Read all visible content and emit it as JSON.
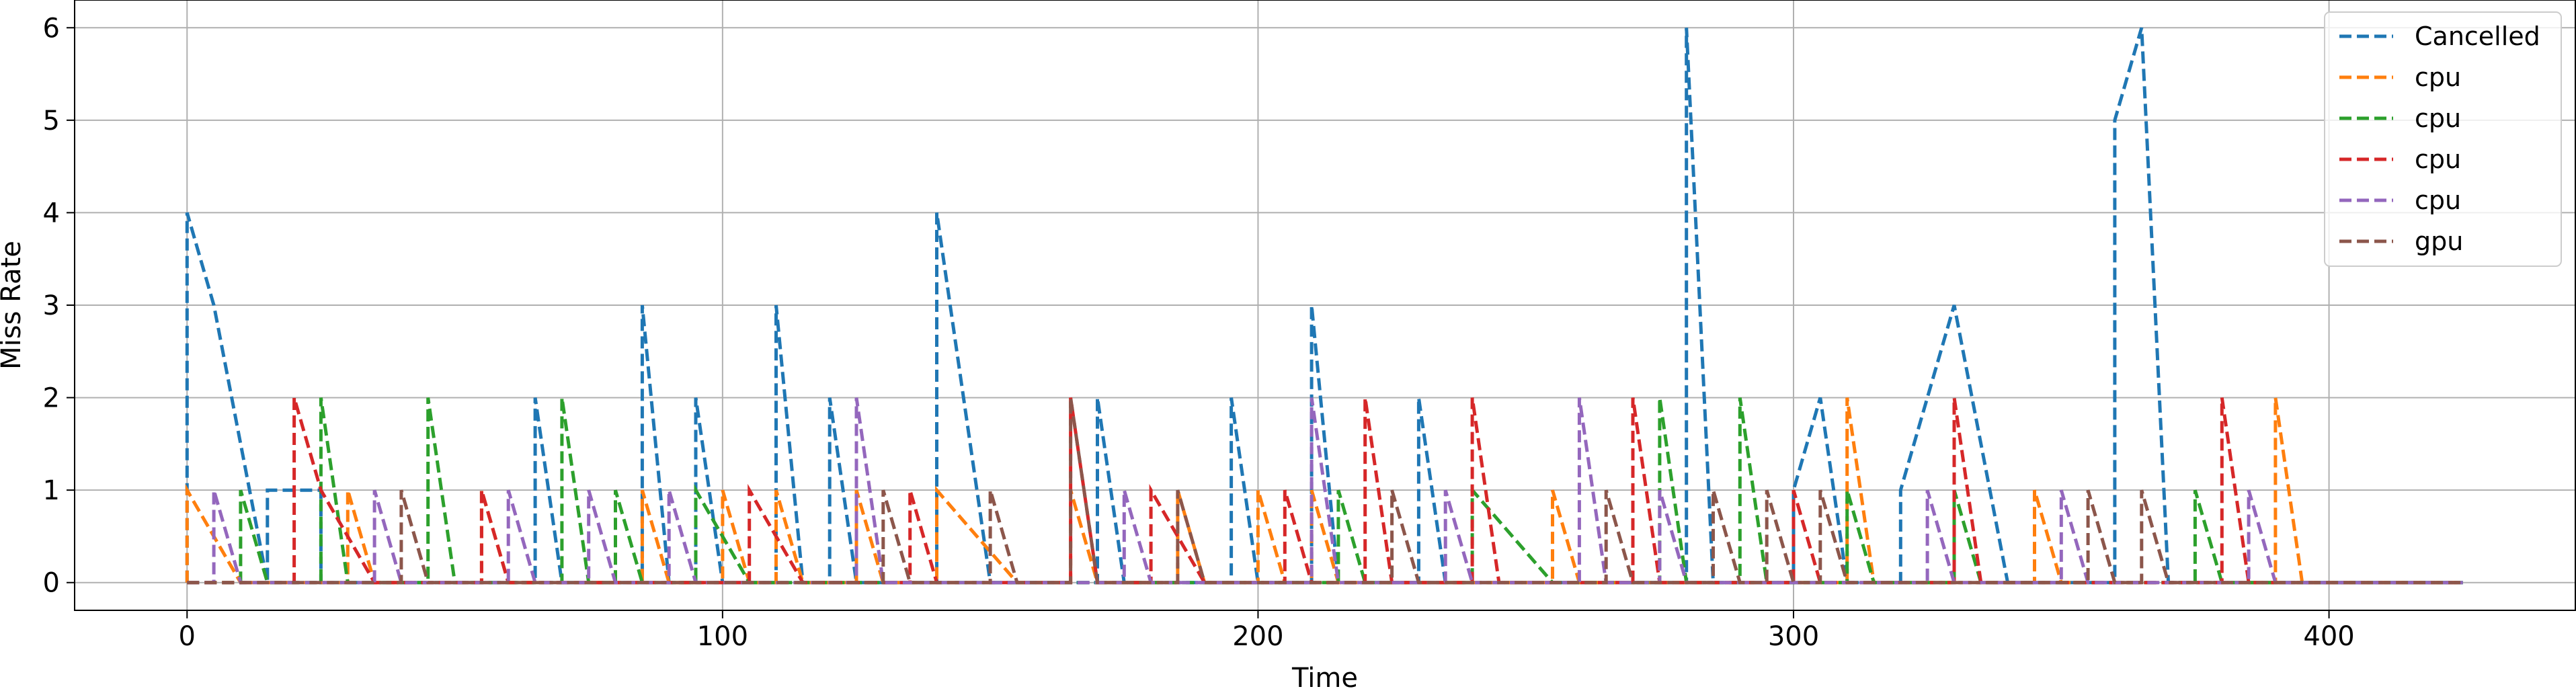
{
  "chart_data": {
    "type": "line",
    "step": "post",
    "line_style": "dashed",
    "xlabel": "Time",
    "ylabel": "Miss Rate",
    "xlim": [
      -21,
      446
    ],
    "ylim": [
      -0.3,
      6.3
    ],
    "xticks": [
      0,
      100,
      200,
      300,
      400
    ],
    "yticks": [
      0,
      1,
      2,
      3,
      4,
      5,
      6
    ],
    "grid": true,
    "legend_position": "top-right",
    "series": [
      {
        "name": "Cancelled",
        "color": "#1f77b4",
        "points": [
          [
            0,
            0
          ],
          [
            0,
            4
          ],
          [
            5,
            3
          ],
          [
            15,
            0
          ],
          [
            15,
            1
          ],
          [
            25,
            1
          ],
          [
            25,
            0
          ],
          [
            65,
            0
          ],
          [
            65,
            2
          ],
          [
            70,
            0
          ],
          [
            85,
            0
          ],
          [
            85,
            3
          ],
          [
            90,
            0
          ],
          [
            95,
            0
          ],
          [
            95,
            2
          ],
          [
            100,
            0
          ],
          [
            110,
            0
          ],
          [
            110,
            3
          ],
          [
            115,
            0
          ],
          [
            120,
            0
          ],
          [
            120,
            2
          ],
          [
            125,
            0
          ],
          [
            140,
            0
          ],
          [
            140,
            4
          ],
          [
            150,
            0
          ],
          [
            170,
            0
          ],
          [
            170,
            2
          ],
          [
            175,
            0
          ],
          [
            195,
            0
          ],
          [
            195,
            2
          ],
          [
            200,
            0
          ],
          [
            210,
            0
          ],
          [
            210,
            3
          ],
          [
            215,
            0
          ],
          [
            230,
            0
          ],
          [
            230,
            2
          ],
          [
            235,
            0
          ],
          [
            280,
            0
          ],
          [
            280,
            6
          ],
          [
            285,
            0
          ],
          [
            300,
            0
          ],
          [
            300,
            1
          ],
          [
            305,
            2
          ],
          [
            310,
            0
          ],
          [
            320,
            0
          ],
          [
            320,
            1
          ],
          [
            325,
            2
          ],
          [
            330,
            3
          ],
          [
            340,
            0
          ],
          [
            360,
            0
          ],
          [
            360,
            5
          ],
          [
            365,
            6
          ],
          [
            370,
            0
          ],
          [
            425,
            0
          ]
        ]
      },
      {
        "name": "cpu",
        "color": "#ff7f0e",
        "points": [
          [
            0,
            0
          ],
          [
            0,
            1
          ],
          [
            10,
            0
          ],
          [
            30,
            0
          ],
          [
            30,
            1
          ],
          [
            35,
            0
          ],
          [
            55,
            0
          ],
          [
            55,
            1
          ],
          [
            60,
            0
          ],
          [
            85,
            0
          ],
          [
            85,
            1
          ],
          [
            90,
            0
          ],
          [
            100,
            0
          ],
          [
            100,
            1
          ],
          [
            105,
            0
          ],
          [
            110,
            0
          ],
          [
            110,
            1
          ],
          [
            115,
            0
          ],
          [
            125,
            0
          ],
          [
            125,
            1
          ],
          [
            130,
            0
          ],
          [
            140,
            0
          ],
          [
            140,
            1
          ],
          [
            155,
            0
          ],
          [
            165,
            0
          ],
          [
            165,
            1
          ],
          [
            170,
            0
          ],
          [
            185,
            0
          ],
          [
            185,
            1
          ],
          [
            190,
            0
          ],
          [
            200,
            0
          ],
          [
            200,
            1
          ],
          [
            205,
            0
          ],
          [
            210,
            0
          ],
          [
            210,
            1
          ],
          [
            215,
            0
          ],
          [
            255,
            0
          ],
          [
            255,
            1
          ],
          [
            260,
            0
          ],
          [
            310,
            0
          ],
          [
            310,
            2
          ],
          [
            315,
            0
          ],
          [
            345,
            0
          ],
          [
            345,
            1
          ],
          [
            350,
            0
          ],
          [
            390,
            0
          ],
          [
            390,
            2
          ],
          [
            395,
            0
          ],
          [
            425,
            0
          ]
        ]
      },
      {
        "name": "cpu",
        "color": "#2ca02c",
        "points": [
          [
            0,
            0
          ],
          [
            10,
            0
          ],
          [
            10,
            1
          ],
          [
            15,
            0
          ],
          [
            25,
            0
          ],
          [
            25,
            2
          ],
          [
            30,
            0
          ],
          [
            45,
            0
          ],
          [
            45,
            2
          ],
          [
            50,
            0
          ],
          [
            70,
            0
          ],
          [
            70,
            2
          ],
          [
            75,
            0
          ],
          [
            80,
            0
          ],
          [
            80,
            1
          ],
          [
            85,
            0
          ],
          [
            95,
            0
          ],
          [
            95,
            1
          ],
          [
            105,
            0
          ],
          [
            215,
            0
          ],
          [
            215,
            1
          ],
          [
            220,
            0
          ],
          [
            240,
            0
          ],
          [
            240,
            1
          ],
          [
            255,
            0
          ],
          [
            275,
            0
          ],
          [
            275,
            2
          ],
          [
            280,
            0
          ],
          [
            290,
            0
          ],
          [
            290,
            2
          ],
          [
            295,
            0
          ],
          [
            310,
            0
          ],
          [
            310,
            1
          ],
          [
            315,
            0
          ],
          [
            330,
            0
          ],
          [
            330,
            1
          ],
          [
            335,
            0
          ],
          [
            375,
            0
          ],
          [
            375,
            1
          ],
          [
            380,
            0
          ],
          [
            425,
            0
          ]
        ]
      },
      {
        "name": "cpu",
        "color": "#d62728",
        "points": [
          [
            0,
            0
          ],
          [
            20,
            0
          ],
          [
            20,
            2
          ],
          [
            25,
            1
          ],
          [
            35,
            0
          ],
          [
            55,
            0
          ],
          [
            55,
            1
          ],
          [
            60,
            0
          ],
          [
            105,
            0
          ],
          [
            105,
            1
          ],
          [
            115,
            0
          ],
          [
            135,
            0
          ],
          [
            135,
            1
          ],
          [
            140,
            0
          ],
          [
            165,
            0
          ],
          [
            165,
            2
          ],
          [
            170,
            0
          ],
          [
            180,
            0
          ],
          [
            180,
            1
          ],
          [
            190,
            0
          ],
          [
            205,
            0
          ],
          [
            205,
            1
          ],
          [
            210,
            0
          ],
          [
            220,
            0
          ],
          [
            220,
            2
          ],
          [
            225,
            0
          ],
          [
            240,
            0
          ],
          [
            240,
            2
          ],
          [
            245,
            0
          ],
          [
            270,
            0
          ],
          [
            270,
            2
          ],
          [
            275,
            0
          ],
          [
            300,
            0
          ],
          [
            300,
            1
          ],
          [
            305,
            0
          ],
          [
            330,
            0
          ],
          [
            330,
            2
          ],
          [
            335,
            0
          ],
          [
            380,
            0
          ],
          [
            380,
            2
          ],
          [
            385,
            0
          ],
          [
            425,
            0
          ]
        ]
      },
      {
        "name": "cpu",
        "color": "#9467bd",
        "points": [
          [
            0,
            0
          ],
          [
            5,
            0
          ],
          [
            5,
            1
          ],
          [
            10,
            0
          ],
          [
            35,
            0
          ],
          [
            35,
            1
          ],
          [
            40,
            0
          ],
          [
            60,
            0
          ],
          [
            60,
            1
          ],
          [
            65,
            0
          ],
          [
            75,
            0
          ],
          [
            75,
            1
          ],
          [
            80,
            0
          ],
          [
            90,
            0
          ],
          [
            90,
            1
          ],
          [
            95,
            0
          ],
          [
            125,
            0
          ],
          [
            125,
            2
          ],
          [
            130,
            0
          ],
          [
            175,
            0
          ],
          [
            175,
            1
          ],
          [
            180,
            0
          ],
          [
            210,
            0
          ],
          [
            210,
            2
          ],
          [
            215,
            0
          ],
          [
            235,
            0
          ],
          [
            235,
            1
          ],
          [
            240,
            0
          ],
          [
            260,
            0
          ],
          [
            260,
            2
          ],
          [
            265,
            0
          ],
          [
            275,
            0
          ],
          [
            275,
            1
          ],
          [
            280,
            0
          ],
          [
            325,
            0
          ],
          [
            325,
            1
          ],
          [
            330,
            0
          ],
          [
            350,
            0
          ],
          [
            350,
            1
          ],
          [
            355,
            0
          ],
          [
            385,
            0
          ],
          [
            385,
            1
          ],
          [
            390,
            0
          ],
          [
            425,
            0
          ]
        ]
      },
      {
        "name": "gpu",
        "color": "#8c564b",
        "points": [
          [
            0,
            0
          ],
          [
            40,
            0
          ],
          [
            40,
            1
          ],
          [
            45,
            0
          ],
          [
            130,
            0
          ],
          [
            130,
            1
          ],
          [
            135,
            0
          ],
          [
            150,
            0
          ],
          [
            150,
            1
          ],
          [
            155,
            0
          ],
          [
            165,
            0
          ],
          [
            165,
            2
          ],
          [
            170,
            0
          ],
          [
            185,
            0
          ],
          [
            185,
            1
          ],
          [
            190,
            0
          ],
          [
            225,
            0
          ],
          [
            225,
            1
          ],
          [
            230,
            0
          ],
          [
            265,
            0
          ],
          [
            265,
            1
          ],
          [
            270,
            0
          ],
          [
            285,
            0
          ],
          [
            285,
            1
          ],
          [
            290,
            0
          ],
          [
            295,
            0
          ],
          [
            295,
            1
          ],
          [
            300,
            0
          ],
          [
            305,
            0
          ],
          [
            305,
            1
          ],
          [
            310,
            0
          ],
          [
            355,
            0
          ],
          [
            355,
            1
          ],
          [
            360,
            0
          ],
          [
            365,
            0
          ],
          [
            365,
            1
          ],
          [
            370,
            0
          ],
          [
            425,
            0
          ]
        ]
      }
    ]
  }
}
